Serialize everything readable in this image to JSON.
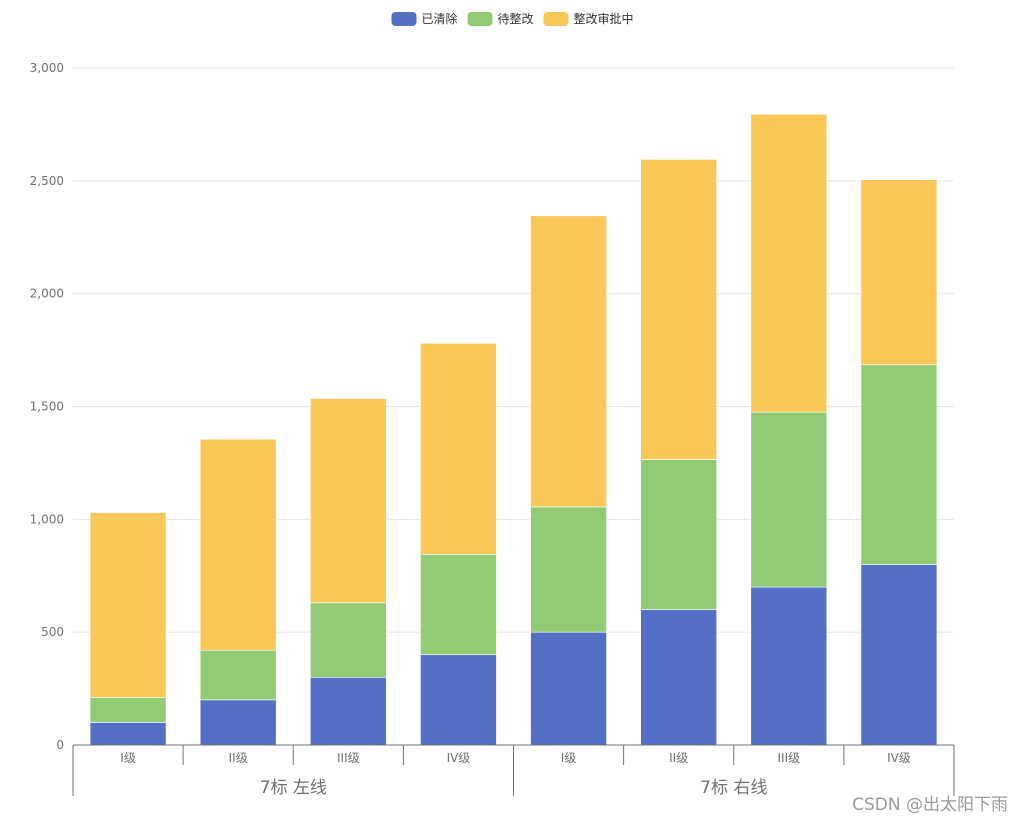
{
  "chart_data": {
    "type": "bar",
    "stacked": true,
    "legend_position": "top-center",
    "legend": [
      "已清除",
      "待整改",
      "整改审批中"
    ],
    "categories": [
      "I级",
      "II级",
      "III级",
      "IV级",
      "I级",
      "II级",
      "III级",
      "IV级"
    ],
    "groups": [
      {
        "label": "7标 左线",
        "span": 4
      },
      {
        "label": "7标 右线",
        "span": 4
      }
    ],
    "series": [
      {
        "name": "已清除",
        "color": "#5470c6",
        "values": [
          100,
          200,
          300,
          400,
          500,
          600,
          700,
          800
        ]
      },
      {
        "name": "待整改",
        "color": "#91cc75",
        "values": [
          110,
          220,
          330,
          445,
          555,
          665,
          775,
          885
        ]
      },
      {
        "name": "整改审批中",
        "color": "#fac858",
        "values": [
          820,
          935,
          905,
          935,
          1290,
          1330,
          1320,
          820
        ]
      }
    ],
    "ylim": [
      0,
      3000
    ],
    "yticks": [
      0,
      500,
      1000,
      1500,
      2000,
      2500,
      3000
    ],
    "ytick_labels": [
      "0",
      "500",
      "1,000",
      "1,500",
      "2,000",
      "2,500",
      "3,000"
    ],
    "grid": true
  },
  "watermark": "CSDN @出太阳下雨"
}
